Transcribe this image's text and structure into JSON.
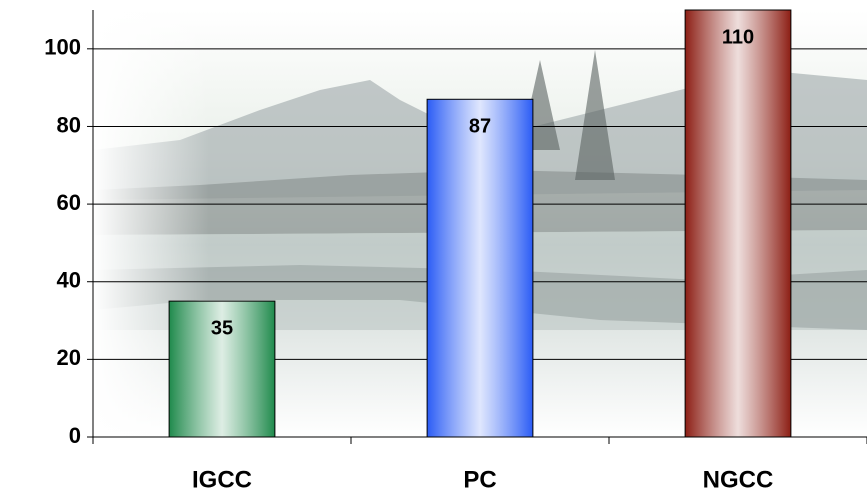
{
  "chart_data": {
    "type": "bar",
    "categories": [
      "IGCC",
      "PC",
      "NGCC"
    ],
    "values": [
      35,
      87,
      110
    ],
    "colors": [
      "#1f8a4c",
      "#2a5cf5",
      "#8c1e14"
    ],
    "ylim": [
      0,
      110
    ],
    "yticks": [
      0,
      20,
      40,
      60,
      80,
      100
    ],
    "grid": true
  }
}
